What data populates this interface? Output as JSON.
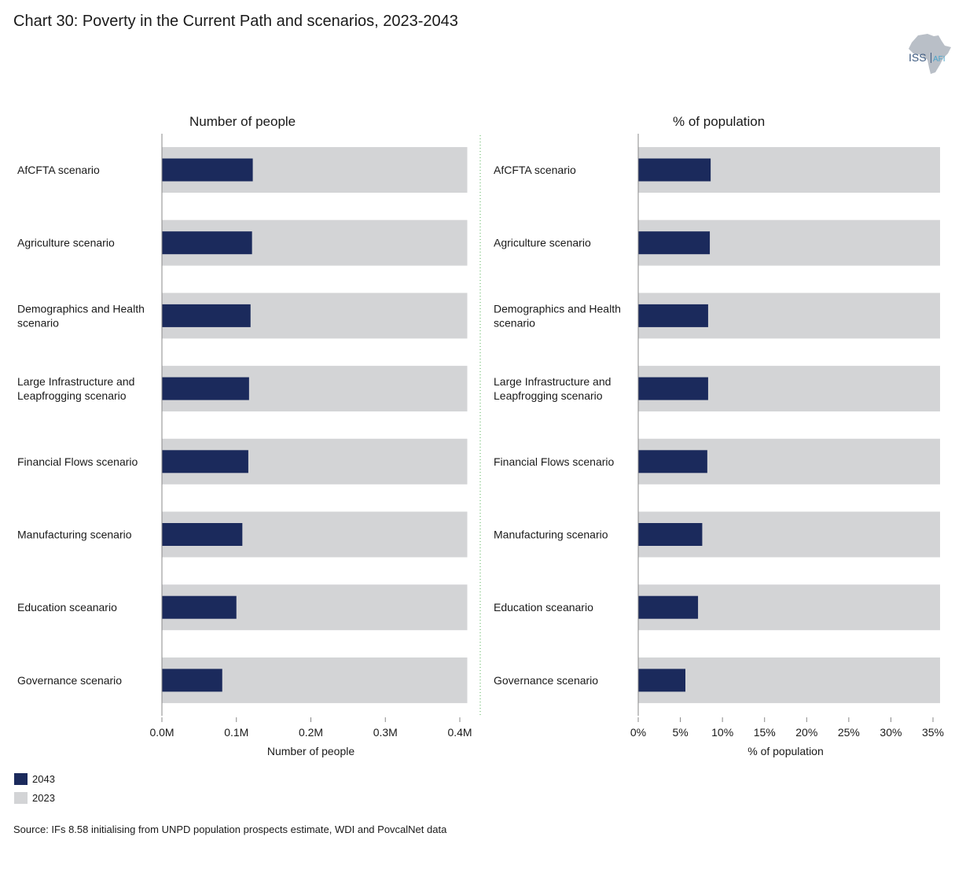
{
  "title": "Chart 30: Poverty in the Current Path and scenarios, 2023-2043",
  "source": "Source: IFs 8.58 initialising from UNPD population prospects estimate, WDI and PovcalNet data",
  "logo": {
    "text": "ISS",
    "suffix": "AFI"
  },
  "legend": [
    {
      "label": "2043",
      "color": "#1b2a5c"
    },
    {
      "label": "2023",
      "color": "#d3d4d6"
    }
  ],
  "chart_data": [
    {
      "type": "bar",
      "orientation": "horizontal",
      "title": "Number of people",
      "xlabel": "Number of people",
      "xlim": [
        0,
        0.4
      ],
      "ticks": [
        0,
        0.1,
        0.2,
        0.3,
        0.4
      ],
      "tick_labels": [
        "0.0M",
        "0.1M",
        "0.2M",
        "0.3M",
        "0.4M"
      ],
      "categories": [
        "AfCFTA scenario",
        "Agriculture scenario",
        "Demographics and Health scenario",
        "Large Infrastructure and Leapfrogging scenario",
        "Financial Flows scenario",
        "Manufacturing scenario",
        "Education sceanario",
        "Governance scenario"
      ],
      "series": [
        {
          "name": "2023",
          "color": "#d3d4d6",
          "values": [
            0.41,
            0.41,
            0.41,
            0.41,
            0.41,
            0.41,
            0.41,
            0.41
          ]
        },
        {
          "name": "2043",
          "color": "#1b2a5c",
          "values": [
            0.122,
            0.121,
            0.119,
            0.117,
            0.116,
            0.108,
            0.1,
            0.081
          ]
        }
      ]
    },
    {
      "type": "bar",
      "orientation": "horizontal",
      "title": "% of population",
      "xlabel": "% of population",
      "xlim": [
        0,
        35
      ],
      "ticks": [
        0,
        5,
        10,
        15,
        20,
        25,
        30,
        35
      ],
      "tick_labels": [
        "0%",
        "5%",
        "10%",
        "15%",
        "20%",
        "25%",
        "30%",
        "35%"
      ],
      "categories": [
        "AfCFTA scenario",
        "Agriculture scenario",
        "Demographics and Health scenario",
        "Large Infrastructure and Leapfrogging scenario",
        "Financial Flows scenario",
        "Manufacturing scenario",
        "Education sceanario",
        "Governance scenario"
      ],
      "series": [
        {
          "name": "2023",
          "color": "#d3d4d6",
          "values": [
            36,
            36,
            36,
            36,
            36,
            36,
            36,
            36
          ]
        },
        {
          "name": "2043",
          "color": "#1b2a5c",
          "values": [
            8.6,
            8.5,
            8.3,
            8.3,
            8.2,
            7.6,
            7.1,
            5.6
          ]
        }
      ]
    }
  ]
}
